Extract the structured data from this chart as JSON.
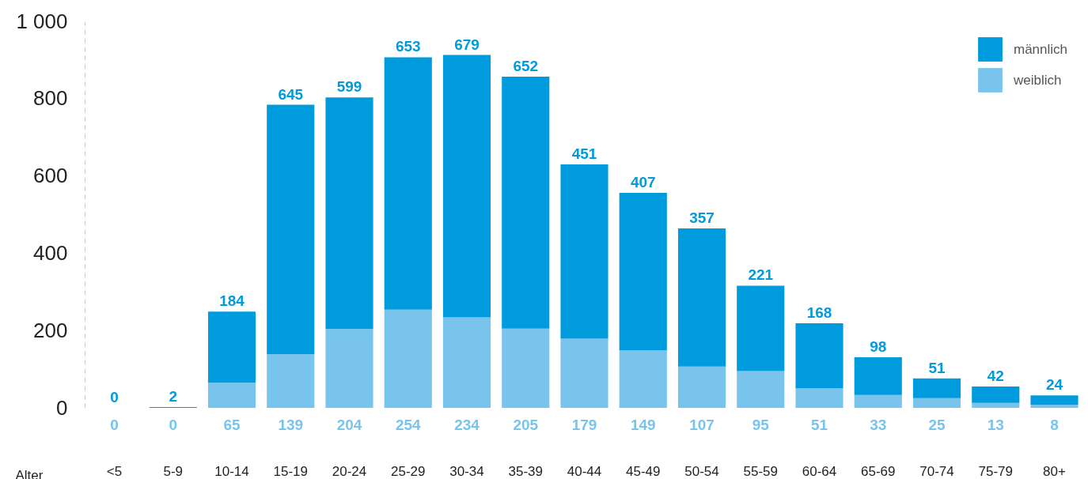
{
  "chart_data": {
    "type": "bar",
    "stacked": true,
    "xlabel": "Alter",
    "categories": [
      "<5",
      "5-9",
      "10-14",
      "15-19",
      "20-24",
      "25-29",
      "30-34",
      "35-39",
      "40-44",
      "45-49",
      "50-54",
      "55-59",
      "60-64",
      "65-69",
      "70-74",
      "75-79",
      "80+"
    ],
    "series": [
      {
        "name": "weiblich",
        "color": "#79c4ec",
        "values": [
          0,
          0,
          65,
          139,
          204,
          254,
          234,
          205,
          179,
          149,
          107,
          95,
          51,
          33,
          25,
          13,
          8
        ]
      },
      {
        "name": "männlich",
        "color": "#009bdc",
        "values": [
          0,
          2,
          184,
          645,
          599,
          653,
          679,
          652,
          451,
          407,
          357,
          221,
          168,
          98,
          51,
          42,
          24
        ]
      }
    ],
    "ylim": [
      0,
      1000
    ],
    "yticks": [
      0,
      200,
      400,
      600,
      {
        "value": 1000,
        "label": "1 000"
      },
      800
    ],
    "data_labels": true,
    "legend": "top right",
    "grid": false
  }
}
